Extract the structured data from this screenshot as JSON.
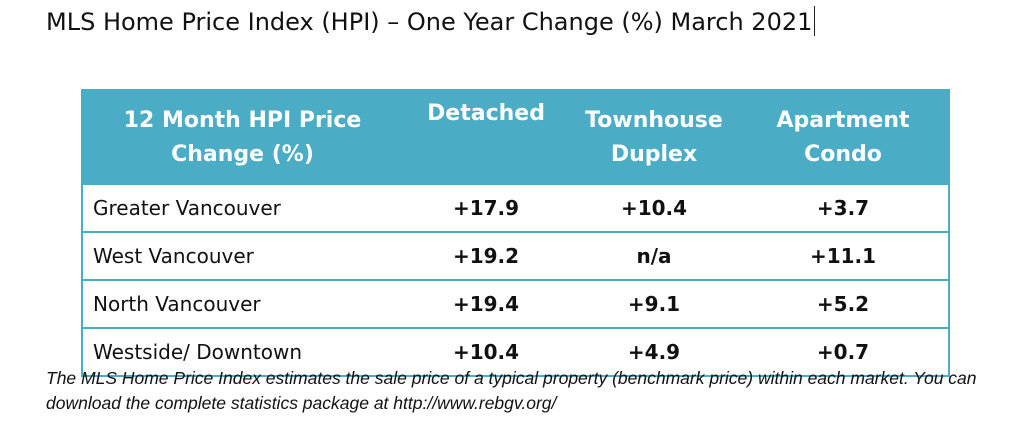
{
  "title": "MLS Home Price Index (HPI) – One Year Change (%) March 2021",
  "colors": {
    "header_bg": "#4bacc6",
    "header_text": "#ffffff",
    "border": "#4bacc6"
  },
  "table": {
    "headers": [
      {
        "line1": "12 Month HPI Price",
        "line2": "Change (%)"
      },
      {
        "line1": "Detached",
        "line2": ""
      },
      {
        "line1": "Townhouse",
        "line2": "Duplex"
      },
      {
        "line1": "Apartment",
        "line2": "Condo"
      }
    ],
    "rows": [
      {
        "region": "Greater Vancouver",
        "detached": "+17.9",
        "townhouse": "+10.4",
        "apartment": "+3.7"
      },
      {
        "region": "West Vancouver",
        "detached": "+19.2",
        "townhouse": "n/a",
        "apartment": "+11.1"
      },
      {
        "region": "North Vancouver",
        "detached": "+19.4",
        "townhouse": "+9.1",
        "apartment": "+5.2"
      },
      {
        "region": "Westside/ Downtown",
        "detached": "+10.4",
        "townhouse": "+4.9",
        "apartment": "+0.7"
      }
    ]
  },
  "footnote": "The MLS Home Price Index estimates the sale price of a typical property (benchmark price) within each market.  You can download the complete statistics package at http://www.rebgv.org/"
}
